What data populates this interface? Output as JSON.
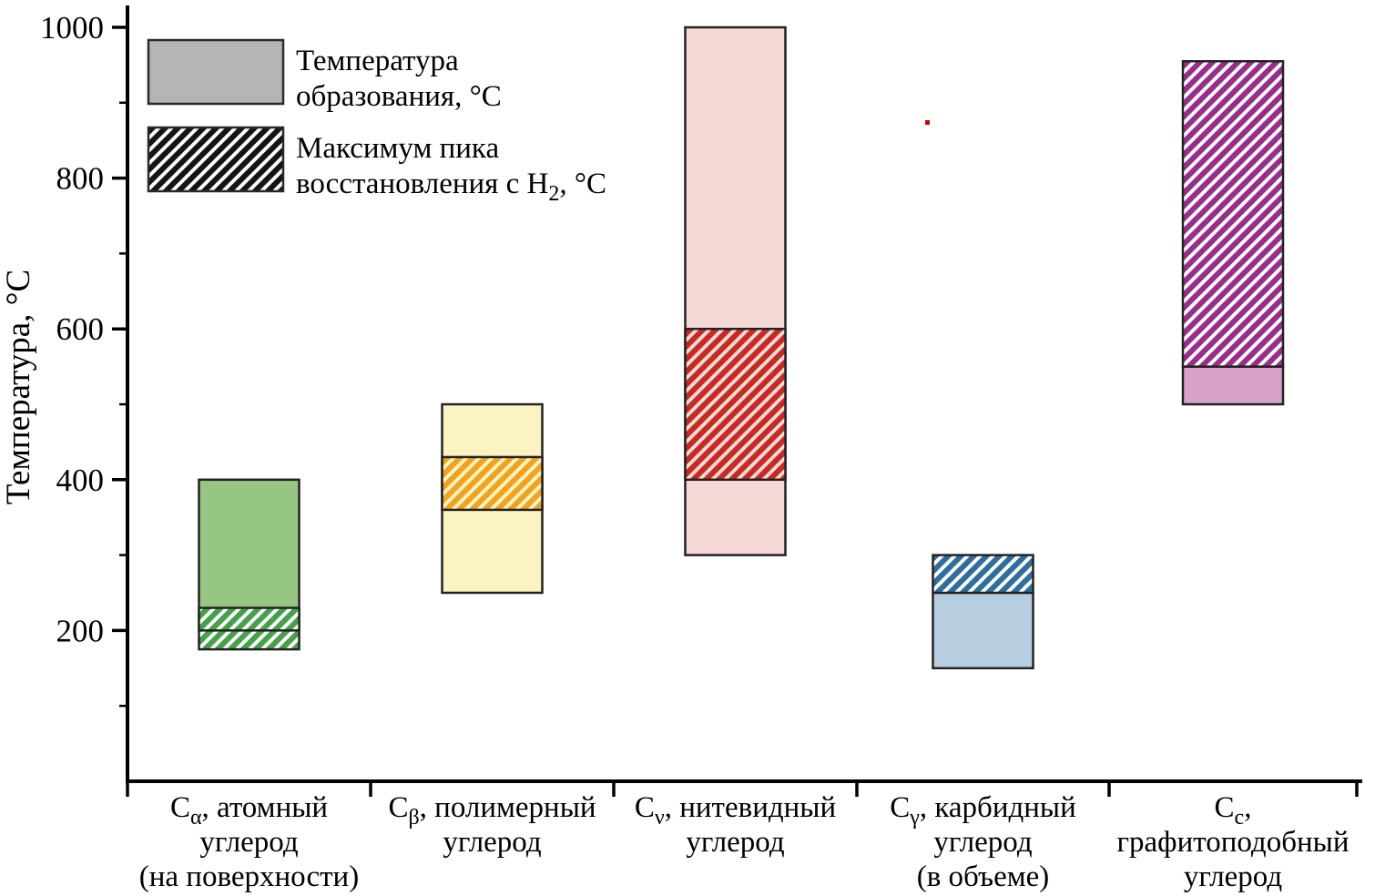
{
  "page": {
    "background": "#ffffff"
  },
  "chart_data": {
    "type": "bar",
    "subtype": "floating-range-bars",
    "title": "",
    "xlabel": "",
    "ylabel": "Температура, °C",
    "ylim": [
      0,
      1000
    ],
    "yticks": [
      200,
      400,
      600,
      800,
      1000
    ],
    "yticks_minor": [
      100,
      300,
      500,
      700,
      900
    ],
    "grid": false,
    "legend_position": "top-left-inside",
    "axis_color": "#000000",
    "bar_edge": "#222222",
    "legend": {
      "formation": {
        "label_lines": [
          "Температура",
          "образования, °C"
        ],
        "fill": "#b5b5b5",
        "edge": "#2a2a2a"
      },
      "reduction": {
        "label_line1": "Максимум пика",
        "label_line2_pre": "восстановления с H",
        "label_line2_sub": "2",
        "label_line2_post": ", °C",
        "stripe": "#141414",
        "bg": "#ffffff",
        "edge": "#2a2a2a"
      }
    },
    "categories": [
      {
        "symbol_base": "C",
        "symbol_sub": "α",
        "label_line1_rest": ", атомный",
        "label_lines": [
          "углерод",
          "(на поверхности)"
        ],
        "formation_range_c": [
          200,
          400
        ],
        "reduction_range_c": [
          175,
          230
        ],
        "formation_fill": "#97c683",
        "reduction_stripe": "#46a049",
        "reduction_bg": "#ffffff"
      },
      {
        "symbol_base": "C",
        "symbol_sub": "β",
        "label_line1_rest": ", полимерный",
        "label_lines": [
          "углерод"
        ],
        "formation_range_c": [
          250,
          500
        ],
        "reduction_range_c": [
          360,
          430
        ],
        "formation_fill": "#fcf3c2",
        "reduction_stripe": "#f0a31e",
        "reduction_bg": "#fcf3c2"
      },
      {
        "symbol_base": "C",
        "symbol_sub": "ν",
        "label_line1_rest": ", нитевидный",
        "label_lines": [
          "углерод"
        ],
        "formation_range_c": [
          300,
          1000
        ],
        "reduction_range_c": [
          400,
          600
        ],
        "formation_fill": "#f5d9d7",
        "reduction_stripe": "#c62a22",
        "reduction_bg": "#f5d9d7"
      },
      {
        "symbol_base": "C",
        "symbol_sub": "γ",
        "label_line1_rest": ", карбидный",
        "label_lines": [
          "углерод",
          "(в объеме)"
        ],
        "formation_range_c": [
          150,
          250
        ],
        "reduction_range_c": [
          250,
          300
        ],
        "formation_fill": "#b7cde0",
        "reduction_stripe": "#2f6d9d",
        "reduction_bg": "#ffffff"
      },
      {
        "symbol_base": "C",
        "symbol_sub": "c",
        "label_line1_rest": ",",
        "label_lines": [
          "графитоподобный",
          "углерод"
        ],
        "formation_range_c": [
          500,
          550
        ],
        "reduction_range_c": [
          550,
          955
        ],
        "formation_fill": "#d9a3c9",
        "reduction_stripe": "#992d8c",
        "reduction_bg": "#ffffff"
      }
    ],
    "stray_mark_color": "#cc0000"
  }
}
